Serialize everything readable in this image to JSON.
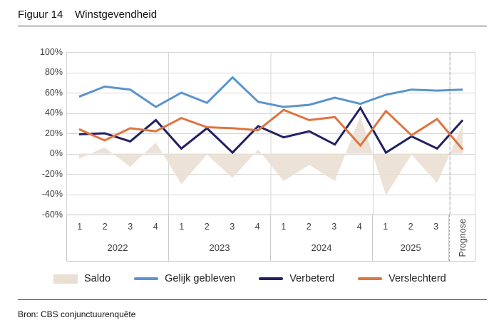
{
  "header": {
    "figure_label": "Figuur 14",
    "title": "Winstgevendheid"
  },
  "source": {
    "text": "Bron: CBS conjunctuurenquête"
  },
  "legend": {
    "items": [
      {
        "label": "Saldo",
        "swatch": "area",
        "color": "#EADFD3"
      },
      {
        "label": "Gelijk gebleven",
        "swatch": "line",
        "color": "#5B94CC"
      },
      {
        "label": "Verbeterd",
        "swatch": "line",
        "color": "#232063"
      },
      {
        "label": "Verslechterd",
        "swatch": "line",
        "color": "#DD7540"
      }
    ]
  },
  "chart_data": {
    "type": "line",
    "title": "Winstgevendheid",
    "ylim": [
      -60,
      100
    ],
    "y_tick_values": [
      100,
      80,
      60,
      40,
      20,
      0,
      -20,
      -40,
      -60
    ],
    "y_tick_labels": [
      "100%",
      "80%",
      "60%",
      "40%",
      "20%",
      "0%",
      "-20%",
      "-40%",
      "-60%"
    ],
    "groups": [
      {
        "year": "2022",
        "quarters": [
          "1",
          "2",
          "3",
          "4"
        ]
      },
      {
        "year": "2023",
        "quarters": [
          "1",
          "2",
          "3",
          "4"
        ]
      },
      {
        "year": "2024",
        "quarters": [
          "1",
          "2",
          "3",
          "4"
        ]
      },
      {
        "year": "2025",
        "quarters": [
          "1",
          "2",
          "3"
        ]
      }
    ],
    "forecast_label": "Prognose",
    "x_labels": [
      "2022-1",
      "2022-2",
      "2022-3",
      "2022-4",
      "2023-1",
      "2023-2",
      "2023-3",
      "2023-4",
      "2024-1",
      "2024-2",
      "2024-3",
      "2024-4",
      "2025-1",
      "2025-2",
      "2025-3",
      "Prognose"
    ],
    "area_series": {
      "name": "Saldo",
      "color": "#EADFD3",
      "values": [
        -5,
        6,
        -13,
        11,
        -30,
        -1,
        -24,
        4,
        -27,
        -11,
        -27,
        37,
        -41,
        -1,
        -29,
        29
      ]
    },
    "series": [
      {
        "name": "Gelijk gebleven",
        "color": "#5B94CC",
        "values": [
          56,
          66,
          63,
          46,
          60,
          50,
          75,
          51,
          46,
          48,
          55,
          49,
          58,
          63,
          62,
          63
        ]
      },
      {
        "name": "Verbeterd",
        "color": "#232063",
        "values": [
          19,
          20,
          12,
          33,
          5,
          25,
          1,
          27,
          16,
          22,
          9,
          45,
          1,
          17,
          5,
          33
        ]
      },
      {
        "name": "Verslechterd",
        "color": "#DD7540",
        "values": [
          24,
          13,
          25,
          22,
          35,
          26,
          25,
          23,
          43,
          33,
          36,
          8,
          42,
          18,
          34,
          4
        ]
      }
    ],
    "gridline_color": "#D6D6D6",
    "forecast_divider_color": "#ABABAB",
    "legend_position": "bottom",
    "grid": "on"
  }
}
